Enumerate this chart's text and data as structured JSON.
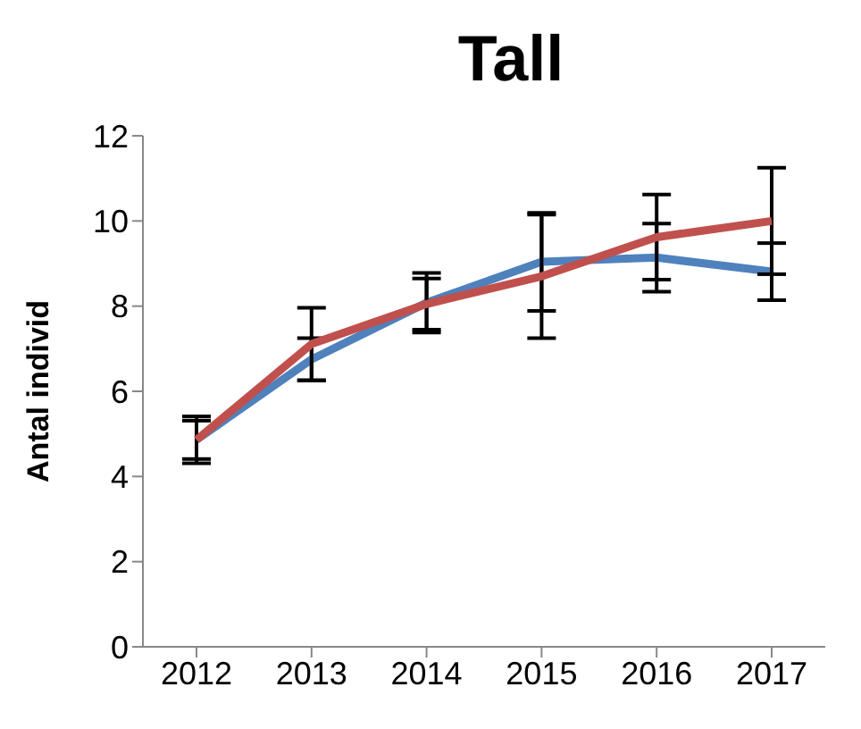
{
  "chart_data": {
    "type": "line",
    "title": "Tall",
    "ylabel": "Antal individ",
    "categories": [
      "2012",
      "2013",
      "2014",
      "2015",
      "2016",
      "2017"
    ],
    "series": [
      {
        "color": "#4f81bd",
        "values": [
          4.86,
          6.75,
          8.08,
          9.04,
          9.14,
          8.81
        ],
        "errors": [
          0.45,
          0.5,
          0.7,
          1.15,
          0.8,
          0.67
        ]
      },
      {
        "color": "#c0504d",
        "values": [
          4.86,
          7.11,
          8.05,
          8.7,
          9.62,
          10.0
        ],
        "errors": [
          0.55,
          0.85,
          0.6,
          1.45,
          1.0,
          1.25
        ]
      }
    ],
    "ylim": [
      0,
      12
    ],
    "yticks": [
      0,
      2,
      4,
      6,
      8,
      10,
      12
    ],
    "grid": false,
    "marker": "none",
    "line_style": "solid"
  }
}
